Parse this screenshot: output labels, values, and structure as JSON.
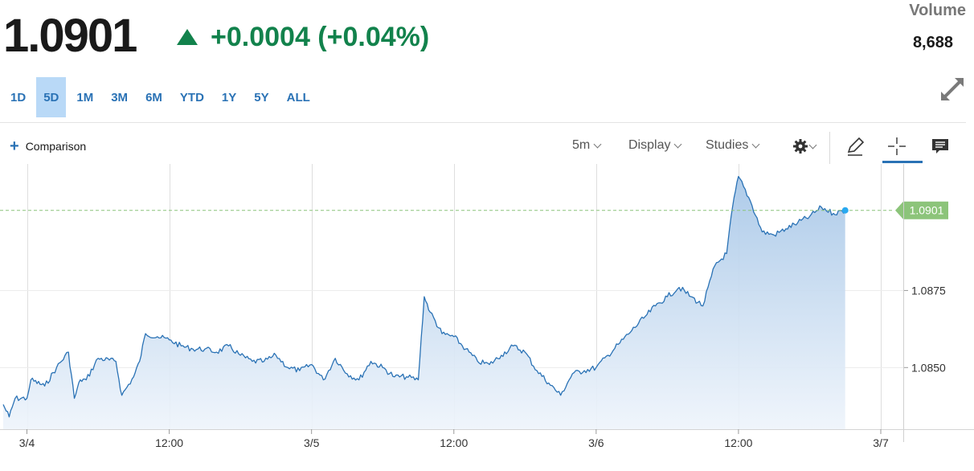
{
  "quote": {
    "price": "1.0901",
    "change": "+0.0004 (+0.04%)",
    "volume_label": "Volume",
    "volume_value": "8,688"
  },
  "range_tabs": [
    {
      "label": "1D",
      "active": false
    },
    {
      "label": "5D",
      "active": true
    },
    {
      "label": "1M",
      "active": false
    },
    {
      "label": "3M",
      "active": false
    },
    {
      "label": "6M",
      "active": false
    },
    {
      "label": "YTD",
      "active": false
    },
    {
      "label": "1Y",
      "active": false
    },
    {
      "label": "5Y",
      "active": false
    },
    {
      "label": "ALL",
      "active": false
    }
  ],
  "toolbar": {
    "comparison_label": "Comparison",
    "interval_label": "5m",
    "display_label": "Display",
    "studies_label": "Studies"
  },
  "icons": {
    "expand": "expand-icon",
    "settings": "gear-icon",
    "draw": "pencil-icon",
    "crosshair": "crosshair-icon",
    "comments": "comment-icon"
  },
  "colors": {
    "up": "#12824c",
    "line": "#2a72b5",
    "price_tag": "#8cc47a",
    "marker": "#29a9f0",
    "active_tab": "#b9d9f7"
  },
  "chart_data": {
    "type": "area",
    "x_labels": [
      "3/4",
      "12:00",
      "3/5",
      "12:00",
      "3/6",
      "12:00",
      "3/7"
    ],
    "y_ticks": [
      "1.0850",
      "1.0875"
    ],
    "ylim": [
      1.083,
      1.0915
    ],
    "last_price_label": "1.0901",
    "last_price": 1.0901,
    "grid": "vertical",
    "points": [
      [
        "3/3 22:00",
        1.0838
      ],
      [
        "3/3 22:30",
        1.0834
      ],
      [
        "3/3 23:00",
        1.084
      ],
      [
        "3/4 00:00",
        1.084
      ],
      [
        "3/4 00:20",
        1.0846
      ],
      [
        "3/4 01:30",
        1.0844
      ],
      [
        "3/4 02:30",
        1.085
      ],
      [
        "3/4 03:30",
        1.0855
      ],
      [
        "3/4 04:00",
        1.084
      ],
      [
        "3/4 04:30",
        1.0846
      ],
      [
        "3/4 05:00",
        1.0846
      ],
      [
        "3/4 06:00",
        1.0853
      ],
      [
        "3/4 07:30",
        1.0852
      ],
      [
        "3/4 08:00",
        1.0841
      ],
      [
        "3/4 09:00",
        1.0847
      ],
      [
        "3/4 09:30",
        1.0852
      ],
      [
        "3/4 10:00",
        1.0861
      ],
      [
        "3/4 11:00",
        1.086
      ],
      [
        "3/4 12:00",
        1.0859
      ],
      [
        "3/4 13:00",
        1.0857
      ],
      [
        "3/4 14:00",
        1.0856
      ],
      [
        "3/4 15:00",
        1.0856
      ],
      [
        "3/4 16:00",
        1.0855
      ],
      [
        "3/4 17:00",
        1.0857
      ],
      [
        "3/4 18:00",
        1.0854
      ],
      [
        "3/4 19:00",
        1.0852
      ],
      [
        "3/4 20:00",
        1.0852
      ],
      [
        "3/4 21:00",
        1.0854
      ],
      [
        "3/4 22:00",
        1.085
      ],
      [
        "3/4 23:00",
        1.0849
      ],
      [
        "3/5 00:00",
        1.0851
      ],
      [
        "3/5 01:00",
        1.0846
      ],
      [
        "3/5 02:00",
        1.0853
      ],
      [
        "3/5 03:00",
        1.0848
      ],
      [
        "3/5 04:00",
        1.0846
      ],
      [
        "3/5 05:00",
        1.0852
      ],
      [
        "3/5 06:00",
        1.085
      ],
      [
        "3/5 07:00",
        1.0847
      ],
      [
        "3/5 08:00",
        1.0847
      ],
      [
        "3/5 09:00",
        1.0846
      ],
      [
        "3/5 09:30",
        1.0873
      ],
      [
        "3/5 10:00",
        1.0868
      ],
      [
        "3/5 11:00",
        1.0861
      ],
      [
        "3/5 12:00",
        1.086
      ],
      [
        "3/5 13:00",
        1.0856
      ],
      [
        "3/5 14:00",
        1.0852
      ],
      [
        "3/5 15:00",
        1.0851
      ],
      [
        "3/5 16:00",
        1.0854
      ],
      [
        "3/5 17:00",
        1.0857
      ],
      [
        "3/5 18:00",
        1.0855
      ],
      [
        "3/5 19:00",
        1.0849
      ],
      [
        "3/5 20:00",
        1.0845
      ],
      [
        "3/5 21:00",
        1.0841
      ],
      [
        "3/5 22:00",
        1.0848
      ],
      [
        "3/5 23:00",
        1.0849
      ],
      [
        "3/6 00:00",
        1.085
      ],
      [
        "3/6 01:00",
        1.0854
      ],
      [
        "3/6 02:00",
        1.0858
      ],
      [
        "3/6 03:00",
        1.0862
      ],
      [
        "3/6 04:00",
        1.0866
      ],
      [
        "3/6 05:00",
        1.087
      ],
      [
        "3/6 06:00",
        1.0873
      ],
      [
        "3/6 07:00",
        1.0876
      ],
      [
        "3/6 08:00",
        1.0873
      ],
      [
        "3/6 09:00",
        1.087
      ],
      [
        "3/6 10:00",
        1.0883
      ],
      [
        "3/6 11:00",
        1.0887
      ],
      [
        "3/6 11:30",
        1.0902
      ],
      [
        "3/6 12:00",
        1.0912
      ],
      [
        "3/6 13:00",
        1.0904
      ],
      [
        "3/6 14:00",
        1.0894
      ],
      [
        "3/6 15:00",
        1.0893
      ],
      [
        "3/6 16:00",
        1.0895
      ],
      [
        "3/6 17:00",
        1.0897
      ],
      [
        "3/6 18:00",
        1.0899
      ],
      [
        "3/6 19:00",
        1.0902
      ],
      [
        "3/6 20:00",
        1.09
      ],
      [
        "3/6 21:00",
        1.0901
      ]
    ]
  }
}
